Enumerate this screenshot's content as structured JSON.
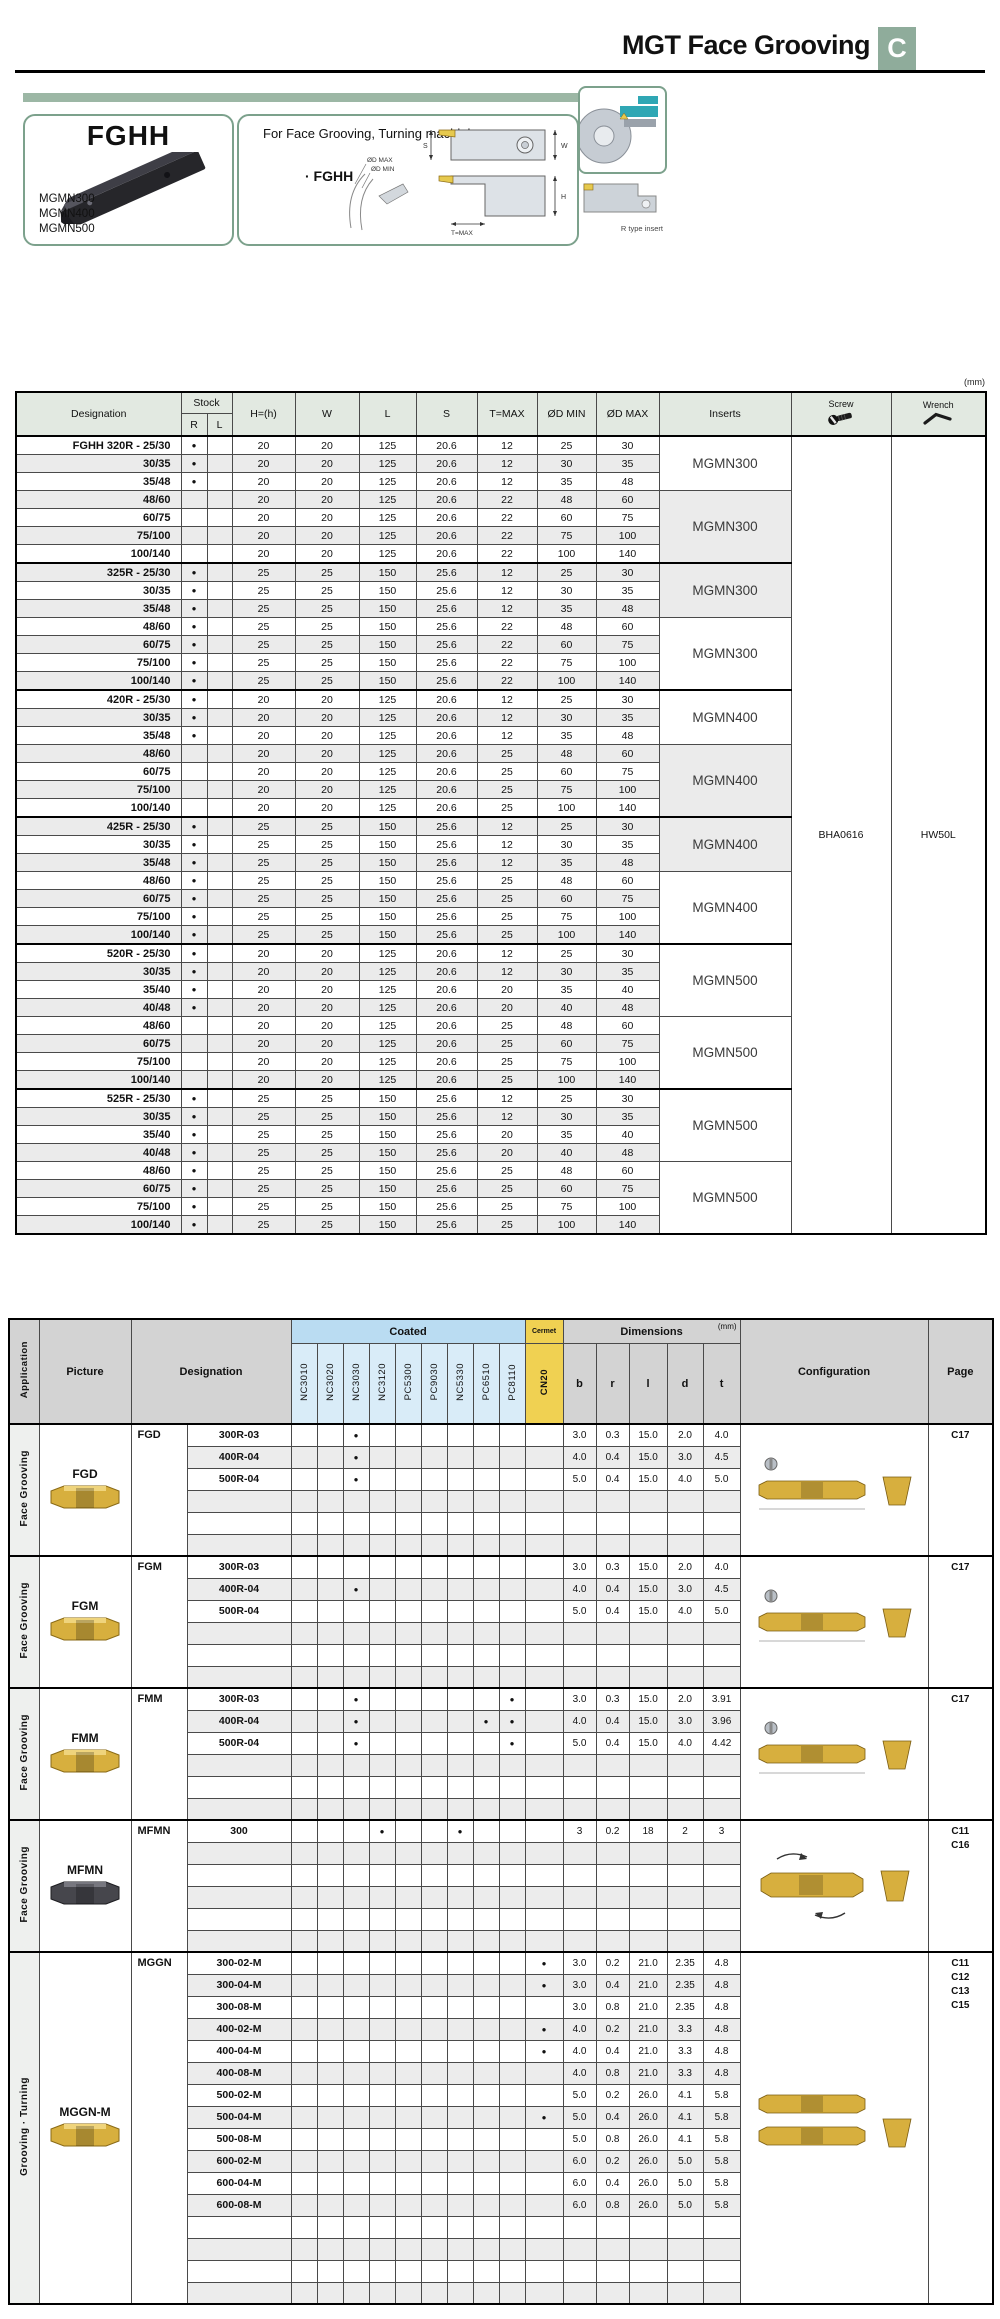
{
  "page": {
    "title": "MGT Face Grooving",
    "tab": "C",
    "mm_note": "(mm)"
  },
  "colors": {
    "accent_green": "#8fac9b",
    "box_border_green": "#7ca18c",
    "header_green": "#e2e9e1",
    "coated_blue": "#badcf2",
    "cermet_yellow": "#f0d152"
  },
  "overview": {
    "model": "FGHH",
    "insert_list": [
      "MGMN300",
      "MGMN400",
      "MGMN500"
    ],
    "usage": "For Face Grooving, Turning machining",
    "model_bullet": "· FGHH",
    "labels": {
      "dmax": "ØD MAX",
      "dmin": "ØD MIN",
      "s": "S",
      "w": "W",
      "h": "H",
      "tmax": "T=MAX",
      "caption": "R type insert"
    }
  },
  "holder_table": {
    "headers": {
      "designation": "Designation",
      "stock": "Stock",
      "r": "R",
      "l": "L",
      "h": "H=(h)",
      "w": "W",
      "len": "L",
      "s": "S",
      "tmax": "T=MAX",
      "dmin": "ØD MIN",
      "dmax": "ØD MAX",
      "inserts": "Inserts",
      "screw": "Screw",
      "wrench": "Wrench"
    },
    "screw": "BHA0616",
    "wrench": "HW50L",
    "series": [
      {
        "label": "FGHH 320R",
        "h": "20",
        "w": "20",
        "len": "125",
        "s": "20.6",
        "subgroups": [
          {
            "inserts": "MGMN300",
            "rows": [
              {
                "size": "25/30",
                "stock_r": true,
                "t": "12",
                "dmin": "25",
                "dmax": "30"
              },
              {
                "size": "30/35",
                "stock_r": true,
                "t": "12",
                "dmin": "30",
                "dmax": "35"
              },
              {
                "size": "35/48",
                "stock_r": true,
                "t": "12",
                "dmin": "35",
                "dmax": "48"
              }
            ]
          },
          {
            "inserts": "MGMN300",
            "rows": [
              {
                "size": "48/60",
                "stock_r": false,
                "t": "22",
                "dmin": "48",
                "dmax": "60"
              },
              {
                "size": "60/75",
                "stock_r": false,
                "t": "22",
                "dmin": "60",
                "dmax": "75"
              },
              {
                "size": "75/100",
                "stock_r": false,
                "t": "22",
                "dmin": "75",
                "dmax": "100"
              },
              {
                "size": "100/140",
                "stock_r": false,
                "t": "22",
                "dmin": "100",
                "dmax": "140"
              }
            ]
          }
        ]
      },
      {
        "label": "325R",
        "h": "25",
        "w": "25",
        "len": "150",
        "s": "25.6",
        "subgroups": [
          {
            "inserts": "MGMN300",
            "rows": [
              {
                "size": "25/30",
                "stock_r": true,
                "t": "12",
                "dmin": "25",
                "dmax": "30"
              },
              {
                "size": "30/35",
                "stock_r": true,
                "t": "12",
                "dmin": "30",
                "dmax": "35"
              },
              {
                "size": "35/48",
                "stock_r": true,
                "t": "12",
                "dmin": "35",
                "dmax": "48"
              }
            ]
          },
          {
            "inserts": "MGMN300",
            "rows": [
              {
                "size": "48/60",
                "stock_r": true,
                "t": "22",
                "dmin": "48",
                "dmax": "60"
              },
              {
                "size": "60/75",
                "stock_r": true,
                "t": "22",
                "dmin": "60",
                "dmax": "75"
              },
              {
                "size": "75/100",
                "stock_r": true,
                "t": "22",
                "dmin": "75",
                "dmax": "100"
              },
              {
                "size": "100/140",
                "stock_r": true,
                "t": "22",
                "dmin": "100",
                "dmax": "140"
              }
            ]
          }
        ]
      },
      {
        "label": "420R",
        "h": "20",
        "w": "20",
        "len": "125",
        "s": "20.6",
        "subgroups": [
          {
            "inserts": "MGMN400",
            "rows": [
              {
                "size": "25/30",
                "stock_r": true,
                "t": "12",
                "dmin": "25",
                "dmax": "30"
              },
              {
                "size": "30/35",
                "stock_r": true,
                "t": "12",
                "dmin": "30",
                "dmax": "35"
              },
              {
                "size": "35/48",
                "stock_r": true,
                "t": "12",
                "dmin": "35",
                "dmax": "48"
              }
            ]
          },
          {
            "inserts": "MGMN400",
            "rows": [
              {
                "size": "48/60",
                "stock_r": false,
                "t": "25",
                "dmin": "48",
                "dmax": "60"
              },
              {
                "size": "60/75",
                "stock_r": false,
                "t": "25",
                "dmin": "60",
                "dmax": "75"
              },
              {
                "size": "75/100",
                "stock_r": false,
                "t": "25",
                "dmin": "75",
                "dmax": "100"
              },
              {
                "size": "100/140",
                "stock_r": false,
                "t": "25",
                "dmin": "100",
                "dmax": "140"
              }
            ]
          }
        ]
      },
      {
        "label": "425R",
        "h": "25",
        "w": "25",
        "len": "150",
        "s": "25.6",
        "subgroups": [
          {
            "inserts": "MGMN400",
            "rows": [
              {
                "size": "25/30",
                "stock_r": true,
                "t": "12",
                "dmin": "25",
                "dmax": "30"
              },
              {
                "size": "30/35",
                "stock_r": true,
                "t": "12",
                "dmin": "30",
                "dmax": "35"
              },
              {
                "size": "35/48",
                "stock_r": true,
                "t": "12",
                "dmin": "35",
                "dmax": "48"
              }
            ]
          },
          {
            "inserts": "MGMN400",
            "rows": [
              {
                "size": "48/60",
                "stock_r": true,
                "t": "25",
                "dmin": "48",
                "dmax": "60"
              },
              {
                "size": "60/75",
                "stock_r": true,
                "t": "25",
                "dmin": "60",
                "dmax": "75"
              },
              {
                "size": "75/100",
                "stock_r": true,
                "t": "25",
                "dmin": "75",
                "dmax": "100"
              },
              {
                "size": "100/140",
                "stock_r": true,
                "t": "25",
                "dmin": "100",
                "dmax": "140"
              }
            ]
          }
        ]
      },
      {
        "label": "520R",
        "h": "20",
        "w": "20",
        "len": "125",
        "s": "20.6",
        "subgroups": [
          {
            "inserts": "MGMN500",
            "rows": [
              {
                "size": "25/30",
                "stock_r": true,
                "t": "12",
                "dmin": "25",
                "dmax": "30"
              },
              {
                "size": "30/35",
                "stock_r": true,
                "t": "12",
                "dmin": "30",
                "dmax": "35"
              },
              {
                "size": "35/40",
                "stock_r": true,
                "t": "20",
                "dmin": "35",
                "dmax": "40"
              },
              {
                "size": "40/48",
                "stock_r": true,
                "t": "20",
                "dmin": "40",
                "dmax": "48"
              }
            ]
          },
          {
            "inserts": "MGMN500",
            "rows": [
              {
                "size": "48/60",
                "stock_r": false,
                "t": "25",
                "dmin": "48",
                "dmax": "60"
              },
              {
                "size": "60/75",
                "stock_r": false,
                "t": "25",
                "dmin": "60",
                "dmax": "75"
              },
              {
                "size": "75/100",
                "stock_r": false,
                "t": "25",
                "dmin": "75",
                "dmax": "100"
              },
              {
                "size": "100/140",
                "stock_r": false,
                "t": "25",
                "dmin": "100",
                "dmax": "140"
              }
            ]
          }
        ]
      },
      {
        "label": "525R",
        "h": "25",
        "w": "25",
        "len": "150",
        "s": "25.6",
        "subgroups": [
          {
            "inserts": "MGMN500",
            "rows": [
              {
                "size": "25/30",
                "stock_r": true,
                "t": "12",
                "dmin": "25",
                "dmax": "30"
              },
              {
                "size": "30/35",
                "stock_r": true,
                "t": "12",
                "dmin": "30",
                "dmax": "35"
              },
              {
                "size": "35/40",
                "stock_r": true,
                "t": "20",
                "dmin": "35",
                "dmax": "40"
              },
              {
                "size": "40/48",
                "stock_r": true,
                "t": "20",
                "dmin": "40",
                "dmax": "48"
              }
            ]
          },
          {
            "inserts": "MGMN500",
            "rows": [
              {
                "size": "48/60",
                "stock_r": true,
                "t": "25",
                "dmin": "48",
                "dmax": "60"
              },
              {
                "size": "60/75",
                "stock_r": true,
                "t": "25",
                "dmin": "60",
                "dmax": "75"
              },
              {
                "size": "75/100",
                "stock_r": true,
                "t": "25",
                "dmin": "75",
                "dmax": "100"
              },
              {
                "size": "100/140",
                "stock_r": true,
                "t": "25",
                "dmin": "100",
                "dmax": "140"
              }
            ]
          }
        ]
      }
    ]
  },
  "insert_table": {
    "headers": {
      "application": "Application",
      "picture": "Picture",
      "designation": "Designation",
      "coated": "Coated",
      "cermet": "Cermet",
      "dimensions": "Dimensions",
      "mm": "(mm)",
      "configuration": "Configuration",
      "page": "Page"
    },
    "grades": {
      "coated": [
        "NC3010",
        "NC3020",
        "NC3030",
        "NC3120",
        "PC5300",
        "PC9030",
        "NC5330",
        "PC6510",
        "PC8110"
      ],
      "cermet": "CN20"
    },
    "dims": [
      "b",
      "r",
      "l",
      "d",
      "t"
    ],
    "sections": [
      {
        "application": "Face Grooving",
        "picture_label": "FGD",
        "prefix": "FGD",
        "insert_style": "gold",
        "config_style": "single",
        "pages": [
          "C17"
        ],
        "rows": [
          {
            "size": "300R-03",
            "dots": [
              "NC3030"
            ],
            "b": "3.0",
            "r": "0.3",
            "l": "15.0",
            "d": "2.0",
            "t": "4.0"
          },
          {
            "size": "400R-04",
            "dots": [
              "NC3030"
            ],
            "b": "4.0",
            "r": "0.4",
            "l": "15.0",
            "d": "3.0",
            "t": "4.5"
          },
          {
            "size": "500R-04",
            "dots": [
              "NC3030"
            ],
            "b": "5.0",
            "r": "0.4",
            "l": "15.0",
            "d": "4.0",
            "t": "5.0"
          }
        ]
      },
      {
        "application": "Face Grooving",
        "picture_label": "FGM",
        "prefix": "FGM",
        "insert_style": "gold",
        "config_style": "single",
        "pages": [
          "C17"
        ],
        "rows": [
          {
            "size": "300R-03",
            "dots": [],
            "b": "3.0",
            "r": "0.3",
            "l": "15.0",
            "d": "2.0",
            "t": "4.0"
          },
          {
            "size": "400R-04",
            "dots": [
              "NC3030"
            ],
            "b": "4.0",
            "r": "0.4",
            "l": "15.0",
            "d": "3.0",
            "t": "4.5"
          },
          {
            "size": "500R-04",
            "dots": [],
            "b": "5.0",
            "r": "0.4",
            "l": "15.0",
            "d": "4.0",
            "t": "5.0"
          }
        ]
      },
      {
        "application": "Face Grooving",
        "picture_label": "FMM",
        "prefix": "FMM",
        "insert_style": "gold",
        "config_style": "single",
        "pages": [
          "C17"
        ],
        "rows": [
          {
            "size": "300R-03",
            "dots": [
              "NC3030",
              "PC8110"
            ],
            "b": "3.0",
            "r": "0.3",
            "l": "15.0",
            "d": "2.0",
            "t": "3.91"
          },
          {
            "size": "400R-04",
            "dots": [
              "NC3030",
              "PC6510",
              "PC8110"
            ],
            "b": "4.0",
            "r": "0.4",
            "l": "15.0",
            "d": "3.0",
            "t": "3.96"
          },
          {
            "size": "500R-04",
            "dots": [
              "NC3030",
              "PC8110"
            ],
            "b": "5.0",
            "r": "0.4",
            "l": "15.0",
            "d": "4.0",
            "t": "4.42"
          }
        ]
      },
      {
        "application": "Face Grooving",
        "picture_label": "MFMN",
        "prefix": "MFMN",
        "insert_style": "dark",
        "config_style": "arrows",
        "pages": [
          "C11",
          "C16"
        ],
        "rows": [
          {
            "size": "300",
            "dots": [
              "NC3120",
              "NC5330"
            ],
            "b": "3",
            "r": "0.2",
            "l": "18",
            "d": "2",
            "t": "3"
          }
        ]
      },
      {
        "application": "Grooving · Turning",
        "picture_label": "MGGN-M",
        "prefix": "MGGN",
        "insert_style": "gold",
        "config_style": "double",
        "pages": [
          "C11",
          "C12",
          "C13",
          "C15"
        ],
        "rows": [
          {
            "size": "300-02-M",
            "dots": [
              "CN20"
            ],
            "b": "3.0",
            "r": "0.2",
            "l": "21.0",
            "d": "2.35",
            "t": "4.8"
          },
          {
            "size": "300-04-M",
            "dots": [
              "CN20"
            ],
            "b": "3.0",
            "r": "0.4",
            "l": "21.0",
            "d": "2.35",
            "t": "4.8"
          },
          {
            "size": "300-08-M",
            "dots": [],
            "b": "3.0",
            "r": "0.8",
            "l": "21.0",
            "d": "2.35",
            "t": "4.8"
          },
          {
            "size": "400-02-M",
            "dots": [
              "CN20"
            ],
            "b": "4.0",
            "r": "0.2",
            "l": "21.0",
            "d": "3.3",
            "t": "4.8"
          },
          {
            "size": "400-04-M",
            "dots": [
              "CN20"
            ],
            "b": "4.0",
            "r": "0.4",
            "l": "21.0",
            "d": "3.3",
            "t": "4.8"
          },
          {
            "size": "400-08-M",
            "dots": [],
            "b": "4.0",
            "r": "0.8",
            "l": "21.0",
            "d": "3.3",
            "t": "4.8"
          },
          {
            "size": "500-02-M",
            "dots": [],
            "b": "5.0",
            "r": "0.2",
            "l": "26.0",
            "d": "4.1",
            "t": "5.8"
          },
          {
            "size": "500-04-M",
            "dots": [
              "CN20"
            ],
            "b": "5.0",
            "r": "0.4",
            "l": "26.0",
            "d": "4.1",
            "t": "5.8"
          },
          {
            "size": "500-08-M",
            "dots": [],
            "b": "5.0",
            "r": "0.8",
            "l": "26.0",
            "d": "4.1",
            "t": "5.8"
          },
          {
            "size": "600-02-M",
            "dots": [],
            "b": "6.0",
            "r": "0.2",
            "l": "26.0",
            "d": "5.0",
            "t": "5.8"
          },
          {
            "size": "600-04-M",
            "dots": [],
            "b": "6.0",
            "r": "0.4",
            "l": "26.0",
            "d": "5.0",
            "t": "5.8"
          },
          {
            "size": "600-08-M",
            "dots": [],
            "b": "6.0",
            "r": "0.8",
            "l": "26.0",
            "d": "5.0",
            "t": "5.8"
          }
        ]
      }
    ]
  }
}
